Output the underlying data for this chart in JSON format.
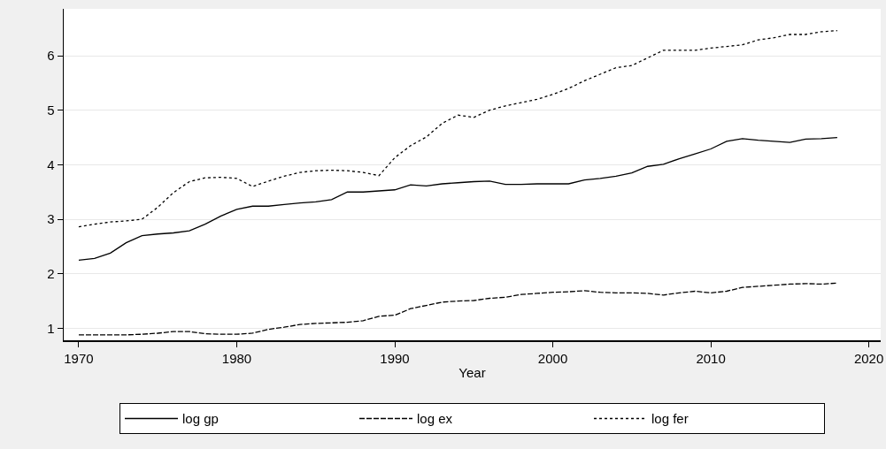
{
  "chart_data": {
    "type": "line",
    "xlabel": "Year",
    "x": [
      1970,
      1971,
      1972,
      1973,
      1974,
      1975,
      1976,
      1977,
      1978,
      1979,
      1980,
      1981,
      1982,
      1983,
      1984,
      1985,
      1986,
      1987,
      1988,
      1989,
      1990,
      1991,
      1992,
      1993,
      1994,
      1995,
      1996,
      1997,
      1998,
      1999,
      2000,
      2001,
      2002,
      2003,
      2004,
      2005,
      2006,
      2007,
      2008,
      2009,
      2010,
      2011,
      2012,
      2013,
      2014,
      2015,
      2016,
      2017,
      2018
    ],
    "series": [
      {
        "name": "log gp",
        "color": "#000000",
        "line_style": "solid",
        "values": [
          2.25,
          2.28,
          2.38,
          2.57,
          2.7,
          2.73,
          2.75,
          2.79,
          2.91,
          3.06,
          3.18,
          3.24,
          3.24,
          3.27,
          3.3,
          3.32,
          3.36,
          3.5,
          3.5,
          3.52,
          3.54,
          3.63,
          3.61,
          3.65,
          3.67,
          3.69,
          3.7,
          3.64,
          3.64,
          3.65,
          3.65,
          3.65,
          3.72,
          3.75,
          3.79,
          3.85,
          3.97,
          4.01,
          4.11,
          4.2,
          4.29,
          4.43,
          4.48,
          4.45,
          4.43,
          4.41,
          4.47,
          4.48,
          4.5
        ]
      },
      {
        "name": "log ex",
        "color": "#000000",
        "line_style": "dashed",
        "values": [
          0.88,
          0.88,
          0.88,
          0.88,
          0.89,
          0.91,
          0.94,
          0.94,
          0.9,
          0.89,
          0.89,
          0.91,
          0.98,
          1.02,
          1.07,
          1.09,
          1.1,
          1.11,
          1.14,
          1.22,
          1.24,
          1.36,
          1.42,
          1.48,
          1.5,
          1.51,
          1.55,
          1.57,
          1.62,
          1.64,
          1.66,
          1.67,
          1.69,
          1.66,
          1.65,
          1.65,
          1.64,
          1.61,
          1.65,
          1.68,
          1.65,
          1.68,
          1.75,
          1.77,
          1.79,
          1.81,
          1.82,
          1.81,
          1.83
        ]
      },
      {
        "name": "log fer",
        "color": "#000000",
        "line_style": "dotted",
        "values": [
          2.86,
          2.91,
          2.95,
          2.97,
          3.0,
          3.22,
          3.49,
          3.69,
          3.76,
          3.77,
          3.75,
          3.6,
          3.7,
          3.79,
          3.86,
          3.89,
          3.9,
          3.89,
          3.86,
          3.8,
          4.13,
          4.35,
          4.51,
          4.76,
          4.91,
          4.87,
          5.0,
          5.08,
          5.14,
          5.2,
          5.29,
          5.4,
          5.54,
          5.66,
          5.78,
          5.82,
          5.96,
          6.1,
          6.1,
          6.1,
          6.14,
          6.17,
          6.2,
          6.29,
          6.33,
          6.39,
          6.39,
          6.44,
          6.46
        ]
      }
    ],
    "xlim": [
      1969.05,
      2020.75
    ],
    "xticks": [
      1970,
      1980,
      1990,
      2000,
      2010,
      2020
    ],
    "ylim": [
      0.78,
      6.86
    ],
    "yticks": [
      1,
      2,
      3,
      4,
      5,
      6
    ],
    "grid": "y",
    "legend": "bottom"
  }
}
